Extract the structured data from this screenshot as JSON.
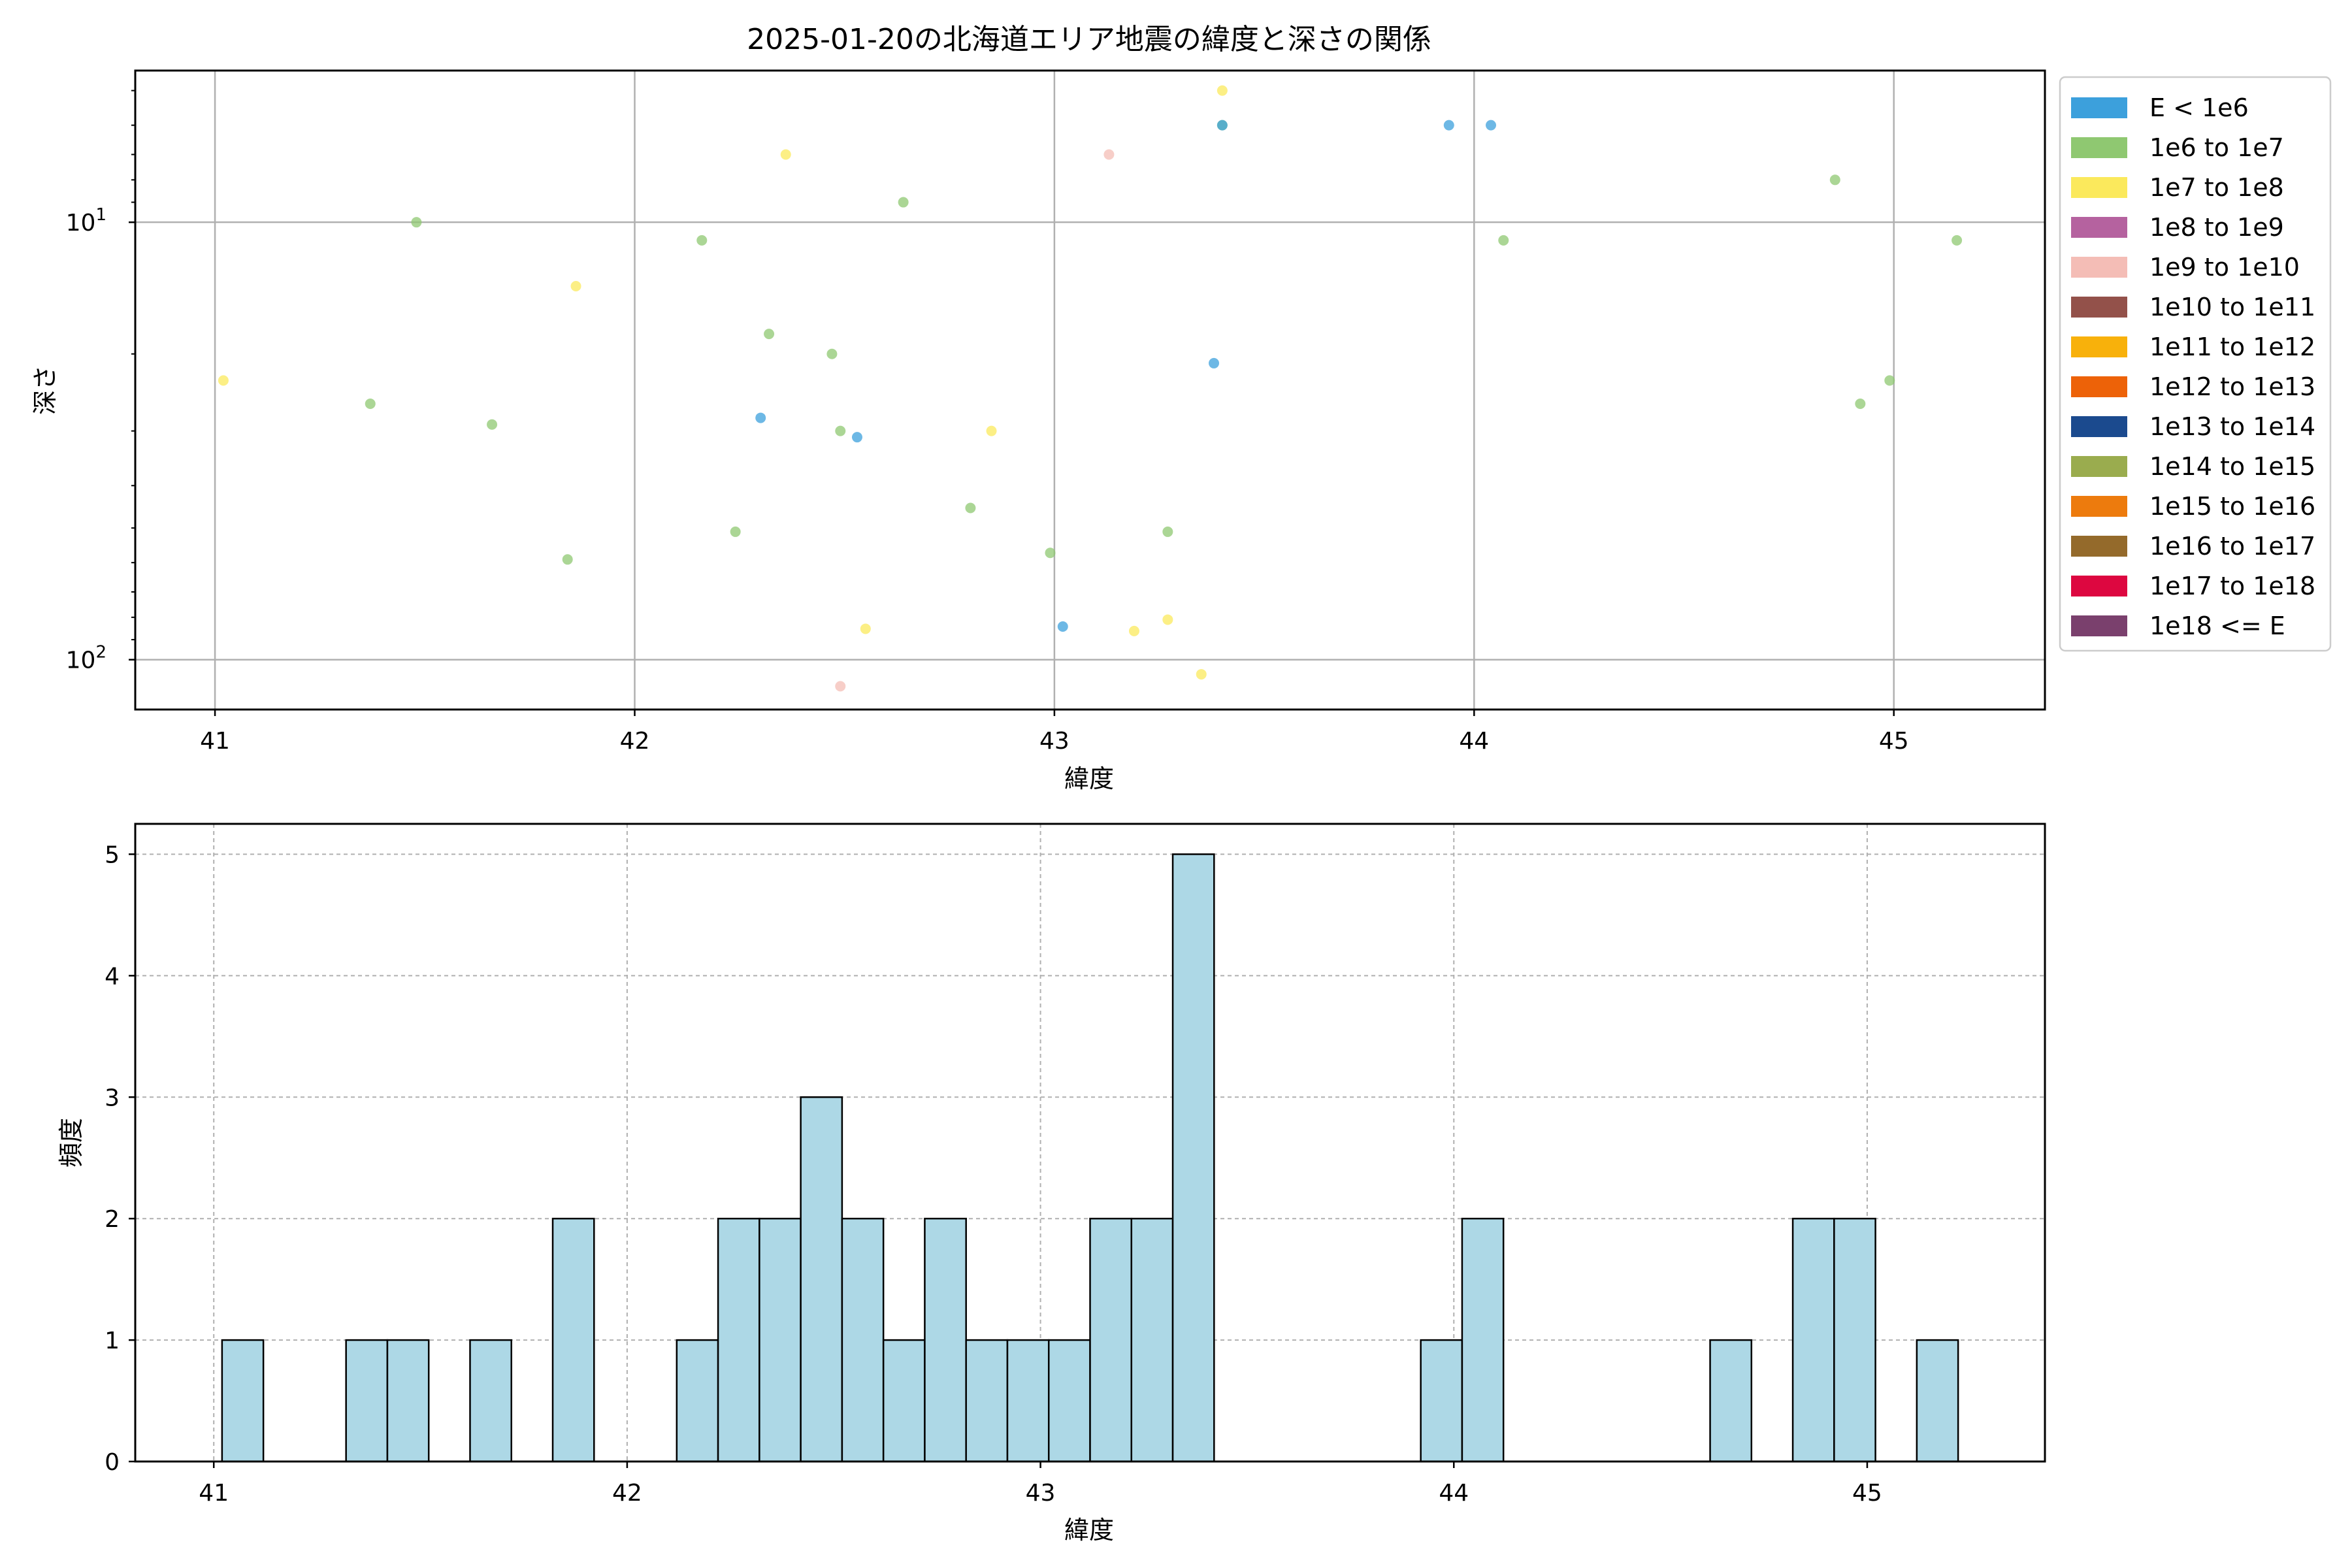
{
  "chart_data": [
    {
      "type": "scatter",
      "title": "2025-01-20の北海道エリア地震の緯度と深さの関係",
      "xlabel": "緯度",
      "ylabel": "深さ",
      "xlim": [
        40.81,
        45.36
      ],
      "ylim": [
        130,
        4.5
      ],
      "yscale": "log",
      "y_inverted": true,
      "grid": true,
      "x_ticks": [
        "41",
        "42",
        "43",
        "44",
        "45"
      ],
      "y_ticks": [
        {
          "value": 10,
          "label": "10",
          "sup": "1"
        },
        {
          "value": 100,
          "label": "10",
          "sup": "2"
        }
      ],
      "legend_position": "outside-right",
      "legend": [
        {
          "label": "E < 1e6",
          "color": "#3ca0dc"
        },
        {
          "label": "1e6 to 1e7",
          "color": "#8fc871"
        },
        {
          "label": "1e7 to 1e8",
          "color": "#fbe95c"
        },
        {
          "label": "1e8 to 1e9",
          "color": "#b5629f"
        },
        {
          "label": "1e9 to 1e10",
          "color": "#f4bdb6"
        },
        {
          "label": "1e10 to 1e11",
          "color": "#93514a"
        },
        {
          "label": "1e11 to 1e12",
          "color": "#f8b10b"
        },
        {
          "label": "1e12 to 1e13",
          "color": "#ed6208"
        },
        {
          "label": "1e13 to 1e14",
          "color": "#1b4a8e"
        },
        {
          "label": "1e14 to 1e15",
          "color": "#9aac4e"
        },
        {
          "label": "1e15 to 1e16",
          "color": "#ed7b0d"
        },
        {
          "label": "1e16 to 1e17",
          "color": "#946a2b"
        },
        {
          "label": "1e17 to 1e18",
          "color": "#dd0740"
        },
        {
          "label": "1e18 <= E",
          "color": "#7a406d"
        }
      ],
      "points": [
        {
          "x": 41.02,
          "y": 23,
          "cls": 2
        },
        {
          "x": 41.37,
          "y": 26,
          "cls": 1
        },
        {
          "x": 41.48,
          "y": 10,
          "cls": 1
        },
        {
          "x": 41.66,
          "y": 29,
          "cls": 1
        },
        {
          "x": 41.84,
          "y": 59,
          "cls": 1
        },
        {
          "x": 41.86,
          "y": 14,
          "cls": 2
        },
        {
          "x": 42.16,
          "y": 11,
          "cls": 1
        },
        {
          "x": 42.24,
          "y": 51,
          "cls": 1
        },
        {
          "x": 42.3,
          "y": 28,
          "cls": 0
        },
        {
          "x": 42.32,
          "y": 18,
          "cls": 1
        },
        {
          "x": 42.36,
          "y": 7,
          "cls": 2
        },
        {
          "x": 42.47,
          "y": 20,
          "cls": 1
        },
        {
          "x": 42.49,
          "y": 30,
          "cls": 1
        },
        {
          "x": 42.49,
          "y": 115,
          "cls": 4
        },
        {
          "x": 42.53,
          "y": 31,
          "cls": 0
        },
        {
          "x": 42.55,
          "y": 85,
          "cls": 2
        },
        {
          "x": 42.64,
          "y": 9,
          "cls": 1
        },
        {
          "x": 42.8,
          "y": 45,
          "cls": 1
        },
        {
          "x": 42.85,
          "y": 30,
          "cls": 2
        },
        {
          "x": 42.99,
          "y": 57,
          "cls": 1
        },
        {
          "x": 43.02,
          "y": 84,
          "cls": 0
        },
        {
          "x": 43.13,
          "y": 7,
          "cls": 4
        },
        {
          "x": 43.19,
          "y": 86,
          "cls": 2
        },
        {
          "x": 43.27,
          "y": 51,
          "cls": 1
        },
        {
          "x": 43.27,
          "y": 81,
          "cls": 2
        },
        {
          "x": 43.35,
          "y": 108,
          "cls": 2
        },
        {
          "x": 43.38,
          "y": 21,
          "cls": 0
        },
        {
          "x": 43.4,
          "y": 6,
          "cls": 1
        },
        {
          "x": 43.4,
          "y": 6,
          "cls": 0
        },
        {
          "x": 43.4,
          "y": 5,
          "cls": 2
        },
        {
          "x": 43.94,
          "y": 6,
          "cls": 0
        },
        {
          "x": 44.04,
          "y": 6,
          "cls": 0
        },
        {
          "x": 44.07,
          "y": 11,
          "cls": 1
        },
        {
          "x": 44.86,
          "y": 8,
          "cls": 1
        },
        {
          "x": 44.92,
          "y": 26,
          "cls": 1
        },
        {
          "x": 44.99,
          "y": 23,
          "cls": 1
        },
        {
          "x": 45.15,
          "y": 11,
          "cls": 1
        }
      ]
    },
    {
      "type": "bar",
      "title": "",
      "xlabel": "緯度",
      "ylabel": "頻度",
      "xlim": [
        40.81,
        45.43
      ],
      "ylim": [
        0,
        5.25
      ],
      "grid": true,
      "bar_color": "#add8e6",
      "x_ticks": [
        "41",
        "42",
        "43",
        "44",
        "45"
      ],
      "y_ticks": [
        "0",
        "1",
        "2",
        "3",
        "4",
        "5"
      ],
      "bin_width": 0.1,
      "bins": [
        {
          "x": 41.02,
          "count": 1
        },
        {
          "x": 41.32,
          "count": 1
        },
        {
          "x": 41.42,
          "count": 1
        },
        {
          "x": 41.62,
          "count": 1
        },
        {
          "x": 41.82,
          "count": 2
        },
        {
          "x": 42.12,
          "count": 1
        },
        {
          "x": 42.22,
          "count": 2
        },
        {
          "x": 42.32,
          "count": 2
        },
        {
          "x": 42.42,
          "count": 3
        },
        {
          "x": 42.52,
          "count": 2
        },
        {
          "x": 42.62,
          "count": 1
        },
        {
          "x": 42.72,
          "count": 2
        },
        {
          "x": 42.82,
          "count": 1
        },
        {
          "x": 42.92,
          "count": 1
        },
        {
          "x": 43.02,
          "count": 1
        },
        {
          "x": 43.12,
          "count": 2
        },
        {
          "x": 43.22,
          "count": 2
        },
        {
          "x": 43.32,
          "count": 5
        },
        {
          "x": 43.92,
          "count": 1
        },
        {
          "x": 44.02,
          "count": 2
        },
        {
          "x": 44.62,
          "count": 1
        },
        {
          "x": 44.82,
          "count": 2
        },
        {
          "x": 44.92,
          "count": 2
        },
        {
          "x": 45.12,
          "count": 1
        }
      ]
    }
  ]
}
